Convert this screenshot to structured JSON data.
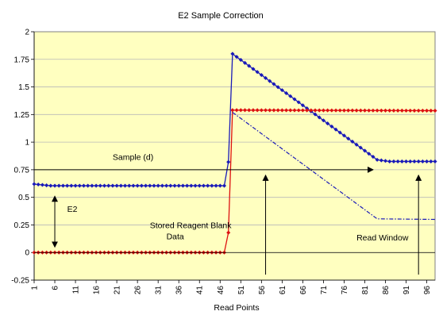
{
  "chart_data": {
    "type": "line",
    "title": "E2 Sample Correction",
    "xlabel": "Read Points",
    "ylabel": "",
    "xlim": [
      1,
      98
    ],
    "ylim": [
      -0.25,
      2
    ],
    "yticks": [
      -0.25,
      0,
      0.25,
      0.5,
      0.75,
      1,
      1.25,
      1.5,
      1.75,
      2
    ],
    "ytick_labels": [
      "-0.25",
      "0",
      "0.25",
      "0.5",
      "0.75",
      "1",
      "1.25",
      "1.5",
      "1.75",
      "2"
    ],
    "xticks": [
      1,
      6,
      11,
      16,
      21,
      26,
      31,
      36,
      41,
      46,
      51,
      56,
      61,
      66,
      71,
      76,
      81,
      86,
      91,
      96
    ],
    "xtick_labels": [
      "1",
      "6",
      "11",
      "16",
      "21",
      "26",
      "31",
      "36",
      "41",
      "46",
      "51",
      "56",
      "61",
      "66",
      "71",
      "76",
      "81",
      "86",
      "91",
      "96"
    ],
    "plot_background": "#ffffc0",
    "grid": true,
    "legend": "none",
    "series": [
      {
        "color": "#1a1ab8",
        "style": "solid-markers",
        "points": [
          [
            1,
            0.62
          ],
          [
            5,
            0.605
          ],
          [
            47,
            0.605
          ],
          [
            48,
            0.82
          ],
          [
            49,
            1.8
          ],
          [
            84,
            0.84
          ],
          [
            87,
            0.825
          ],
          [
            98,
            0.825
          ]
        ]
      },
      {
        "color": "#dd1111",
        "style": "solid-markers",
        "points": [
          [
            1,
            0
          ],
          [
            47,
            0
          ],
          [
            48,
            0.18
          ],
          [
            49,
            1.29
          ],
          [
            98,
            1.285
          ]
        ]
      },
      {
        "color": "#1a1ab8",
        "style": "dash-dot",
        "points": [
          [
            49,
            1.27
          ],
          [
            84,
            0.305
          ],
          [
            98,
            0.3
          ]
        ]
      }
    ],
    "annotations": [
      {
        "text": "Sample (d)",
        "x": 20,
        "y": 0.84
      },
      {
        "text": "E2",
        "x": 9,
        "y": 0.37
      },
      {
        "text": "Stored Reagent Blank",
        "x": 29,
        "y": 0.22
      },
      {
        "text": "Data",
        "x": 33,
        "y": 0.12
      },
      {
        "text": "Read Window",
        "x": 79,
        "y": 0.11
      }
    ],
    "arrows": [
      {
        "name": "sample-arrow",
        "x1": 1,
        "y1": 0.75,
        "x2": 83,
        "y2": 0.75,
        "head": "end"
      },
      {
        "name": "e2-arrow",
        "x1": 6,
        "y1": 0.51,
        "x2": 6,
        "y2": 0.05,
        "head": "both"
      },
      {
        "name": "read-window-start-arrow",
        "x1": 57,
        "y1": -0.2,
        "x2": 57,
        "y2": 0.7,
        "head": "end"
      },
      {
        "name": "read-window-end-arrow",
        "x1": 94,
        "y1": -0.2,
        "x2": 94,
        "y2": 0.7,
        "head": "end"
      }
    ]
  }
}
